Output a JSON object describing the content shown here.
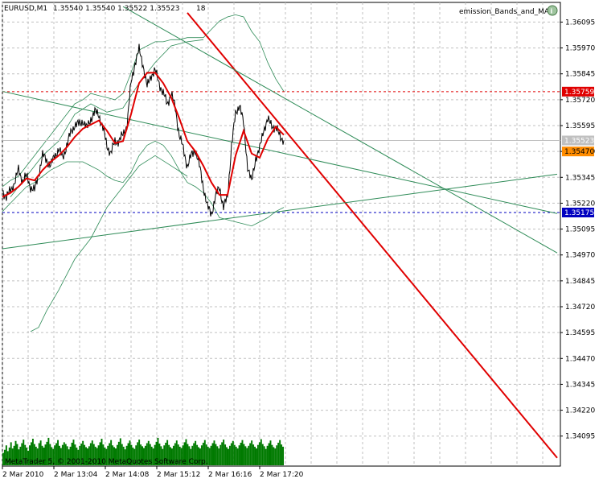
{
  "header": {
    "symbol": "EURUSD,M1",
    "ohlc": "1.35540 1.35540 1.35522 1.35523",
    "count": "18",
    "indicator": "emission_Bands_and_MA",
    "copyright": "MetaTrader 5, © 2001-2010 MetaQuotes Software Corp."
  },
  "colors": {
    "price": "#000000",
    "ma": "#e00000",
    "bands": "#2e8b57",
    "trend_red": "#e00000",
    "trend_green": "#2e8b57",
    "volume": "#007a00",
    "grid": "#c0c0c0",
    "level_red": "#e00000",
    "level_blue": "#0000c0",
    "tag_current": "#c0c0c0",
    "tag_orange": "#ff8c00"
  },
  "chart_data": {
    "type": "line",
    "title": "",
    "ylim": [
      1.3395,
      1.3619
    ],
    "y_ticks": [
      "1.36095",
      "1.35970",
      "1.35845",
      "1.35720",
      "1.35595",
      "1.35470",
      "1.35345",
      "1.35220",
      "1.35095",
      "1.34970",
      "1.34845",
      "1.34720",
      "1.34595",
      "1.34470",
      "1.34345",
      "1.34220",
      "1.34095"
    ],
    "x_ticks": [
      {
        "label": "2 Mar 2010",
        "t": 0
      },
      {
        "label": "2 Mar 13:04",
        "t": 64
      },
      {
        "label": "2 Mar 14:08",
        "t": 128
      },
      {
        "label": "2 Mar 15:12",
        "t": 192
      },
      {
        "label": "2 Mar 16:16",
        "t": 256
      },
      {
        "label": "2 Mar 17:20",
        "t": 320
      }
    ],
    "price_tags": [
      {
        "value": "1.35759",
        "y": 1.35759,
        "style": "red"
      },
      {
        "value": "1.35523",
        "y": 1.35523,
        "style": "current"
      },
      {
        "value": "1.35470",
        "y": 1.3547,
        "style": "orange"
      },
      {
        "value": "1.35175",
        "y": 1.35175,
        "style": "blue"
      }
    ],
    "levels": [
      {
        "name": "level-red",
        "y": 1.35759,
        "style": "red"
      },
      {
        "name": "level-current",
        "y": 1.35523,
        "style": "current"
      },
      {
        "name": "level-blue",
        "y": 1.35175,
        "style": "blue"
      }
    ],
    "price_series": [
      [
        0,
        1.3528
      ],
      [
        5,
        1.3525
      ],
      [
        10,
        1.3528
      ],
      [
        15,
        1.3532
      ],
      [
        20,
        1.3538
      ],
      [
        25,
        1.3533
      ],
      [
        30,
        1.3535
      ],
      [
        35,
        1.353
      ],
      [
        40,
        1.3528
      ],
      [
        45,
        1.3536
      ],
      [
        50,
        1.3545
      ],
      [
        55,
        1.3543
      ],
      [
        60,
        1.354
      ],
      [
        65,
        1.3545
      ],
      [
        70,
        1.3548
      ],
      [
        75,
        1.3544
      ],
      [
        80,
        1.355
      ],
      [
        85,
        1.3556
      ],
      [
        90,
        1.356
      ],
      [
        95,
        1.356
      ],
      [
        100,
        1.3562
      ],
      [
        105,
        1.3558
      ],
      [
        110,
        1.3563
      ],
      [
        115,
        1.3566
      ],
      [
        120,
        1.3565
      ],
      [
        125,
        1.3558
      ],
      [
        130,
        1.355
      ],
      [
        135,
        1.3546
      ],
      [
        140,
        1.3552
      ],
      [
        145,
        1.3552
      ],
      [
        150,
        1.3555
      ],
      [
        155,
        1.356
      ],
      [
        160,
        1.358
      ],
      [
        165,
        1.359
      ],
      [
        170,
        1.3596
      ],
      [
        175,
        1.3589
      ],
      [
        180,
        1.3578
      ],
      [
        185,
        1.3584
      ],
      [
        190,
        1.3586
      ],
      [
        195,
        1.358
      ],
      [
        200,
        1.3575
      ],
      [
        205,
        1.357
      ],
      [
        210,
        1.3575
      ],
      [
        215,
        1.3568
      ],
      [
        220,
        1.3555
      ],
      [
        225,
        1.3548
      ],
      [
        230,
        1.354
      ],
      [
        235,
        1.3545
      ],
      [
        240,
        1.3548
      ],
      [
        245,
        1.354
      ],
      [
        250,
        1.353
      ],
      [
        255,
        1.352
      ],
      [
        260,
        1.3517
      ],
      [
        265,
        1.3525
      ],
      [
        270,
        1.353
      ],
      [
        275,
        1.352
      ],
      [
        280,
        1.3525
      ],
      [
        285,
        1.355
      ],
      [
        290,
        1.3565
      ],
      [
        295,
        1.357
      ],
      [
        300,
        1.356
      ],
      [
        305,
        1.354
      ],
      [
        310,
        1.3532
      ],
      [
        315,
        1.3544
      ],
      [
        320,
        1.3548
      ],
      [
        325,
        1.3558
      ],
      [
        330,
        1.3562
      ],
      [
        335,
        1.356
      ],
      [
        340,
        1.3558
      ],
      [
        345,
        1.3555
      ],
      [
        350,
        1.35523
      ]
    ],
    "ma_series": [
      [
        0,
        1.3525
      ],
      [
        10,
        1.3527
      ],
      [
        20,
        1.353
      ],
      [
        30,
        1.3534
      ],
      [
        40,
        1.3533
      ],
      [
        50,
        1.3538
      ],
      [
        60,
        1.3542
      ],
      [
        70,
        1.3545
      ],
      [
        80,
        1.3549
      ],
      [
        90,
        1.3554
      ],
      [
        100,
        1.3558
      ],
      [
        110,
        1.356
      ],
      [
        120,
        1.3562
      ],
      [
        130,
        1.3557
      ],
      [
        140,
        1.3551
      ],
      [
        150,
        1.3552
      ],
      [
        160,
        1.3565
      ],
      [
        170,
        1.358
      ],
      [
        180,
        1.3585
      ],
      [
        190,
        1.3585
      ],
      [
        200,
        1.358
      ],
      [
        210,
        1.3573
      ],
      [
        220,
        1.3563
      ],
      [
        230,
        1.3552
      ],
      [
        240,
        1.3547
      ],
      [
        250,
        1.354
      ],
      [
        260,
        1.3532
      ],
      [
        270,
        1.3526
      ],
      [
        280,
        1.3526
      ],
      [
        290,
        1.3545
      ],
      [
        300,
        1.3557
      ],
      [
        310,
        1.3546
      ],
      [
        320,
        1.3544
      ],
      [
        330,
        1.3553
      ],
      [
        340,
        1.3559
      ],
      [
        350,
        1.3555
      ]
    ],
    "upper_band": [
      [
        0,
        1.353
      ],
      [
        10,
        1.3533
      ],
      [
        20,
        1.3535
      ],
      [
        30,
        1.354
      ],
      [
        40,
        1.3545
      ],
      [
        50,
        1.355
      ],
      [
        60,
        1.3555
      ],
      [
        70,
        1.356
      ],
      [
        80,
        1.3565
      ],
      [
        90,
        1.357
      ],
      [
        100,
        1.3572
      ],
      [
        110,
        1.3575
      ],
      [
        120,
        1.3574
      ],
      [
        130,
        1.3573
      ],
      [
        140,
        1.3572
      ],
      [
        150,
        1.3575
      ],
      [
        160,
        1.3585
      ],
      [
        170,
        1.3596
      ],
      [
        180,
        1.3598
      ],
      [
        190,
        1.36
      ],
      [
        200,
        1.36
      ],
      [
        210,
        1.3601
      ],
      [
        220,
        1.3601
      ],
      [
        230,
        1.3602
      ],
      [
        240,
        1.3602
      ],
      [
        250,
        1.3602
      ],
      [
        260,
        1.3606
      ],
      [
        270,
        1.361
      ],
      [
        280,
        1.3612
      ],
      [
        290,
        1.3613
      ],
      [
        300,
        1.3612
      ],
      [
        310,
        1.3605
      ],
      [
        320,
        1.36
      ],
      [
        330,
        1.359
      ],
      [
        340,
        1.3582
      ],
      [
        350,
        1.3576
      ]
    ],
    "lower_band": [
      [
        0,
        1.3518
      ],
      [
        10,
        1.3522
      ],
      [
        20,
        1.3526
      ],
      [
        30,
        1.353
      ],
      [
        40,
        1.3532
      ],
      [
        50,
        1.3535
      ],
      [
        60,
        1.3538
      ],
      [
        70,
        1.354
      ],
      [
        80,
        1.3542
      ],
      [
        90,
        1.3542
      ],
      [
        100,
        1.3542
      ],
      [
        110,
        1.354
      ],
      [
        120,
        1.3538
      ],
      [
        130,
        1.3535
      ],
      [
        140,
        1.3533
      ],
      [
        150,
        1.3532
      ],
      [
        160,
        1.3537
      ],
      [
        170,
        1.3545
      ],
      [
        180,
        1.355
      ],
      [
        190,
        1.3552
      ],
      [
        200,
        1.355
      ],
      [
        210,
        1.3545
      ],
      [
        220,
        1.3538
      ],
      [
        230,
        1.3532
      ],
      [
        240,
        1.353
      ],
      [
        250,
        1.3527
      ],
      [
        260,
        1.3522
      ],
      [
        270,
        1.3515
      ],
      [
        280,
        1.3514
      ],
      [
        290,
        1.3513
      ],
      [
        300,
        1.3512
      ],
      [
        310,
        1.3511
      ],
      [
        320,
        1.3513
      ],
      [
        330,
        1.3515
      ],
      [
        340,
        1.3518
      ],
      [
        350,
        1.352
      ]
    ],
    "outer_upper_band": [
      [
        10,
        1.3525
      ],
      [
        30,
        1.3535
      ],
      [
        50,
        1.3545
      ],
      [
        70,
        1.3552
      ],
      [
        90,
        1.3565
      ],
      [
        110,
        1.357
      ],
      [
        130,
        1.3566
      ],
      [
        150,
        1.3568
      ],
      [
        170,
        1.358
      ],
      [
        190,
        1.359
      ],
      [
        210,
        1.3598
      ],
      [
        230,
        1.36
      ],
      [
        250,
        1.3601
      ]
    ],
    "outer_lower_band": [
      [
        35,
        1.346
      ],
      [
        45,
        1.3462
      ],
      [
        55,
        1.347
      ],
      [
        70,
        1.348
      ],
      [
        90,
        1.3495
      ],
      [
        110,
        1.3505
      ],
      [
        130,
        1.352
      ],
      [
        150,
        1.353
      ],
      [
        170,
        1.354
      ],
      [
        190,
        1.3545
      ],
      [
        210,
        1.354
      ],
      [
        230,
        1.3535
      ]
    ],
    "trend_lines": [
      {
        "name": "trend-red",
        "style": "red",
        "p1": [
          230,
          1.3614
        ],
        "p2": [
          690,
          1.3399
        ]
      },
      {
        "name": "trend-green-steep",
        "style": "green",
        "p1": [
          150,
          1.3617
        ],
        "p2": [
          690,
          1.3498
        ]
      },
      {
        "name": "trend-green-mid",
        "style": "green",
        "p1": [
          0,
          1.3576
        ],
        "p2": [
          690,
          1.3517
        ]
      },
      {
        "name": "trend-green-rising",
        "style": "green",
        "p1": [
          0,
          1.35
        ],
        "p2": [
          690,
          1.3536
        ]
      }
    ],
    "volume_max": 100,
    "volumes": [
      28,
      35,
      45,
      32,
      40,
      52,
      38,
      44,
      55,
      48,
      36,
      42,
      50,
      58,
      46,
      40,
      33,
      45,
      52,
      60,
      48,
      42,
      38,
      50,
      56,
      44,
      40,
      47,
      53,
      62,
      48,
      41,
      37,
      45,
      50,
      57,
      44,
      39,
      46,
      52,
      48,
      43,
      36,
      42,
      51,
      58,
      47,
      40,
      35,
      44,
      49,
      55,
      46,
      41,
      38,
      43,
      50,
      56,
      48,
      42,
      39,
      45,
      52,
      60,
      47,
      40,
      37,
      44,
      50,
      57,
      45,
      41,
      38,
      46,
      53,
      61,
      48,
      42,
      36,
      44,
      50,
      56,
      46,
      40,
      37,
      45,
      52,
      58,
      47,
      43,
      39,
      44,
      50,
      55,
      48,
      42,
      38,
      46,
      53,
      62,
      49,
      43,
      37,
      45,
      51,
      57,
      46,
      41,
      38,
      44,
      50,
      56,
      47,
      42,
      39,
      45,
      52,
      59,
      48,
      43,
      37,
      44,
      50,
      55,
      46,
      41,
      38,
      45,
      51,
      57,
      47,
      42,
      39,
      44,
      50,
      56,
      48,
      43,
      38,
      46,
      52,
      58,
      47,
      41,
      37,
      44,
      50,
      55,
      46,
      42,
      38,
      45,
      51,
      57,
      48,
      43,
      39,
      44,
      50,
      56,
      47,
      42,
      38,
      46,
      52,
      59,
      48,
      43,
      37,
      44,
      50,
      56,
      46,
      41,
      38,
      45,
      51,
      57,
      47,
      42
    ]
  }
}
